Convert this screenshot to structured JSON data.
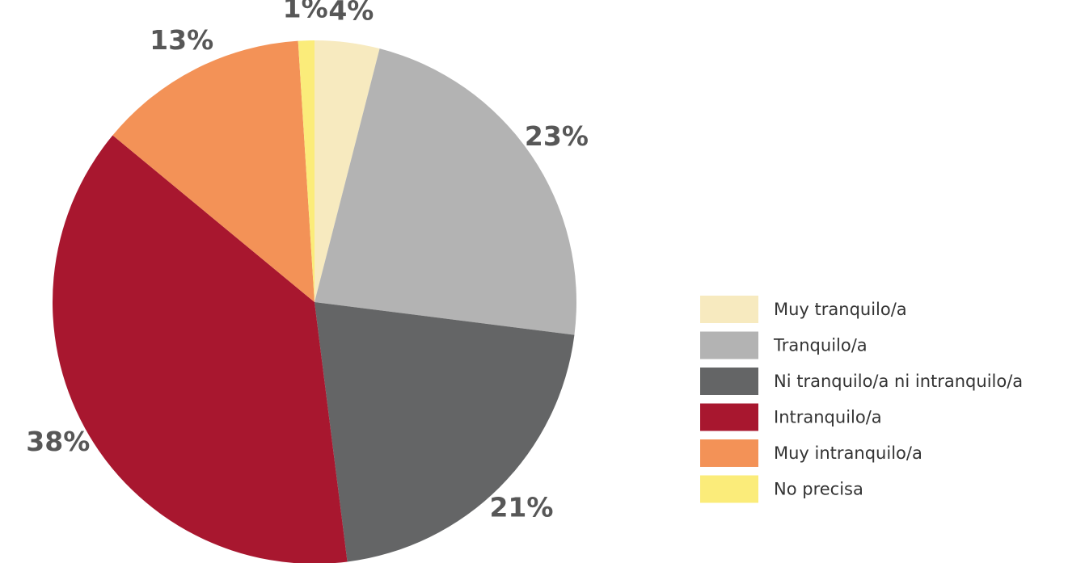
{
  "chart_data": {
    "type": "pie",
    "categories": [
      "Muy tranquilo/a",
      "Tranquilo/a",
      "Ni tranquilo/a ni intranquilo/a",
      "Intranquilo/a",
      "Muy intranquilo/a",
      "No precisa"
    ],
    "values": [
      4,
      23,
      21,
      38,
      13,
      1
    ],
    "value_labels": [
      "4%",
      "23%",
      "21%",
      "38%",
      "13%",
      "1%"
    ],
    "colors": [
      "#f7eabf",
      "#b3b3b3",
      "#646566",
      "#a8172f",
      "#f39257",
      "#fbec7a"
    ],
    "legend": "right"
  }
}
